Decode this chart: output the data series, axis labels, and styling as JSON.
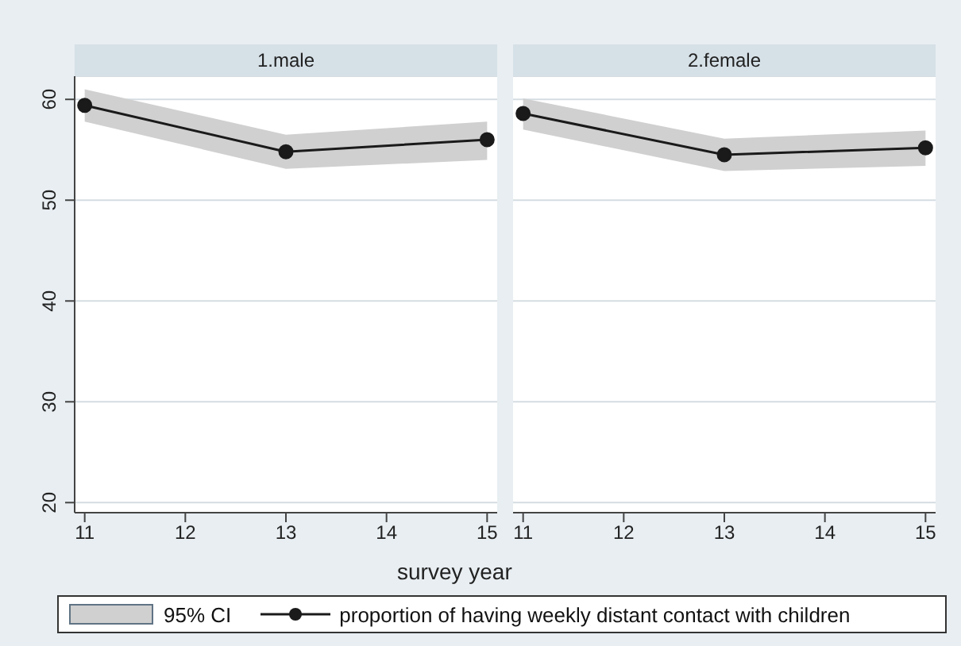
{
  "chart_data": [
    {
      "type": "line",
      "title": "1.male",
      "xlabel": "survey year",
      "annotations": [
        "95% CI"
      ],
      "x": [
        11,
        13,
        15
      ],
      "xlim": [
        10.9,
        15.1
      ],
      "xticks": [
        11,
        12,
        13,
        14,
        15
      ],
      "ylim": [
        19,
        62.3
      ],
      "yticks": [
        20,
        30,
        40,
        50,
        60
      ],
      "grid": "y",
      "legend": "bottom",
      "marker": "circle",
      "line_style": "solid",
      "series": [
        {
          "name": "proportion of having weekly distant contact with children",
          "color": "#1a1a1a",
          "values": [
            59.4,
            54.8,
            56.0
          ],
          "lower": [
            57.8,
            53.1,
            54.0
          ],
          "upper": [
            61.0,
            56.5,
            57.8
          ]
        }
      ]
    },
    {
      "type": "line",
      "title": "2.female",
      "x": [
        11,
        13,
        15
      ],
      "xlim": [
        10.9,
        15.1
      ],
      "xticks": [
        11,
        12,
        13,
        14,
        15
      ],
      "ylim": [
        19,
        62.3
      ],
      "yticks": [
        20,
        30,
        40,
        50,
        60
      ],
      "grid": "y",
      "tick_labels": "x",
      "marker": "circle",
      "line_style": "solid",
      "series": [
        {
          "color": "#1a1a1a",
          "values": [
            58.6,
            54.5,
            55.2
          ],
          "lower": [
            57.0,
            52.9,
            53.4
          ],
          "upper": [
            60.1,
            56.1,
            56.9
          ]
        }
      ]
    }
  ]
}
